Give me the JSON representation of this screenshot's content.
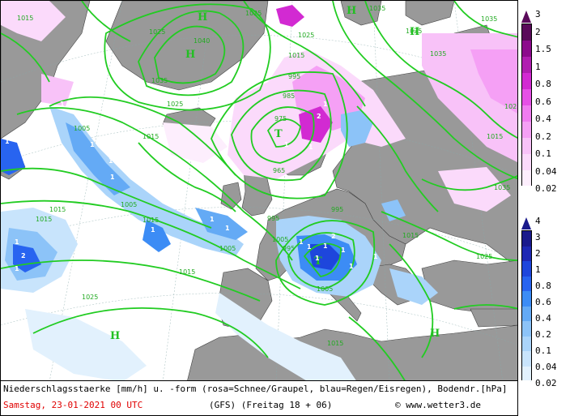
{
  "caption": {
    "line1": "Niederschlagsstaerke [mm/h] u. -form (rosa=Schnee/Graupel, blau=Regen/Eisregen), Bodendr.[hPa]",
    "date": "Samstag, 23-01-2021  00 UTC",
    "model_run": "(GFS)  (Freitag 18 + 06)",
    "copyright": "© www.wetter3.de"
  },
  "scale_snow": {
    "labels": [
      "3",
      "2",
      "1.5",
      "1",
      "0.8",
      "0.6",
      "0.4",
      "0.2",
      "0.1",
      "0.04",
      "0.02"
    ],
    "colors": [
      "#5a0a5a",
      "#8c0a8c",
      "#b01eb0",
      "#d22ad2",
      "#e650e6",
      "#f07cf0",
      "#f5a0f5",
      "#f8c2f8",
      "#fbdafb",
      "#fdeefd"
    ]
  },
  "scale_rain": {
    "labels": [
      "4",
      "3",
      "2",
      "1",
      "0.8",
      "0.6",
      "0.4",
      "0.2",
      "0.1",
      "0.04",
      "0.02"
    ],
    "colors": [
      "#1a1a8c",
      "#1e28b4",
      "#1e46dc",
      "#2864f0",
      "#3c8cf5",
      "#64aaf5",
      "#8cc3f8",
      "#aad4fa",
      "#c8e4fc",
      "#e2f1fd"
    ]
  },
  "isobar_labels": [
    "1015",
    "1025",
    "1040",
    "1035",
    "1025",
    "1015",
    "985",
    "975",
    "995",
    "965",
    "995",
    "1005",
    "1015",
    "1015",
    "1005",
    "1015",
    "1025",
    "1025",
    "1015",
    "1035",
    "1035",
    "1025",
    "1005",
    "995",
    "995",
    "1005",
    "1015",
    "1025",
    "1035",
    "1015",
    "1025",
    "1005",
    "1015",
    "1025",
    "1035",
    "1015"
  ],
  "pressure_centers": [
    "H",
    "H",
    "H",
    "H",
    "H",
    "H",
    "T",
    "T"
  ],
  "precip_labels": [
    "1",
    "1",
    "1",
    "1",
    "1",
    "2",
    "1",
    "1",
    "1",
    "1",
    "1",
    "2",
    "1",
    "2",
    "1",
    "1",
    "1",
    "1",
    "1",
    "1",
    "1",
    "1",
    "1"
  ]
}
